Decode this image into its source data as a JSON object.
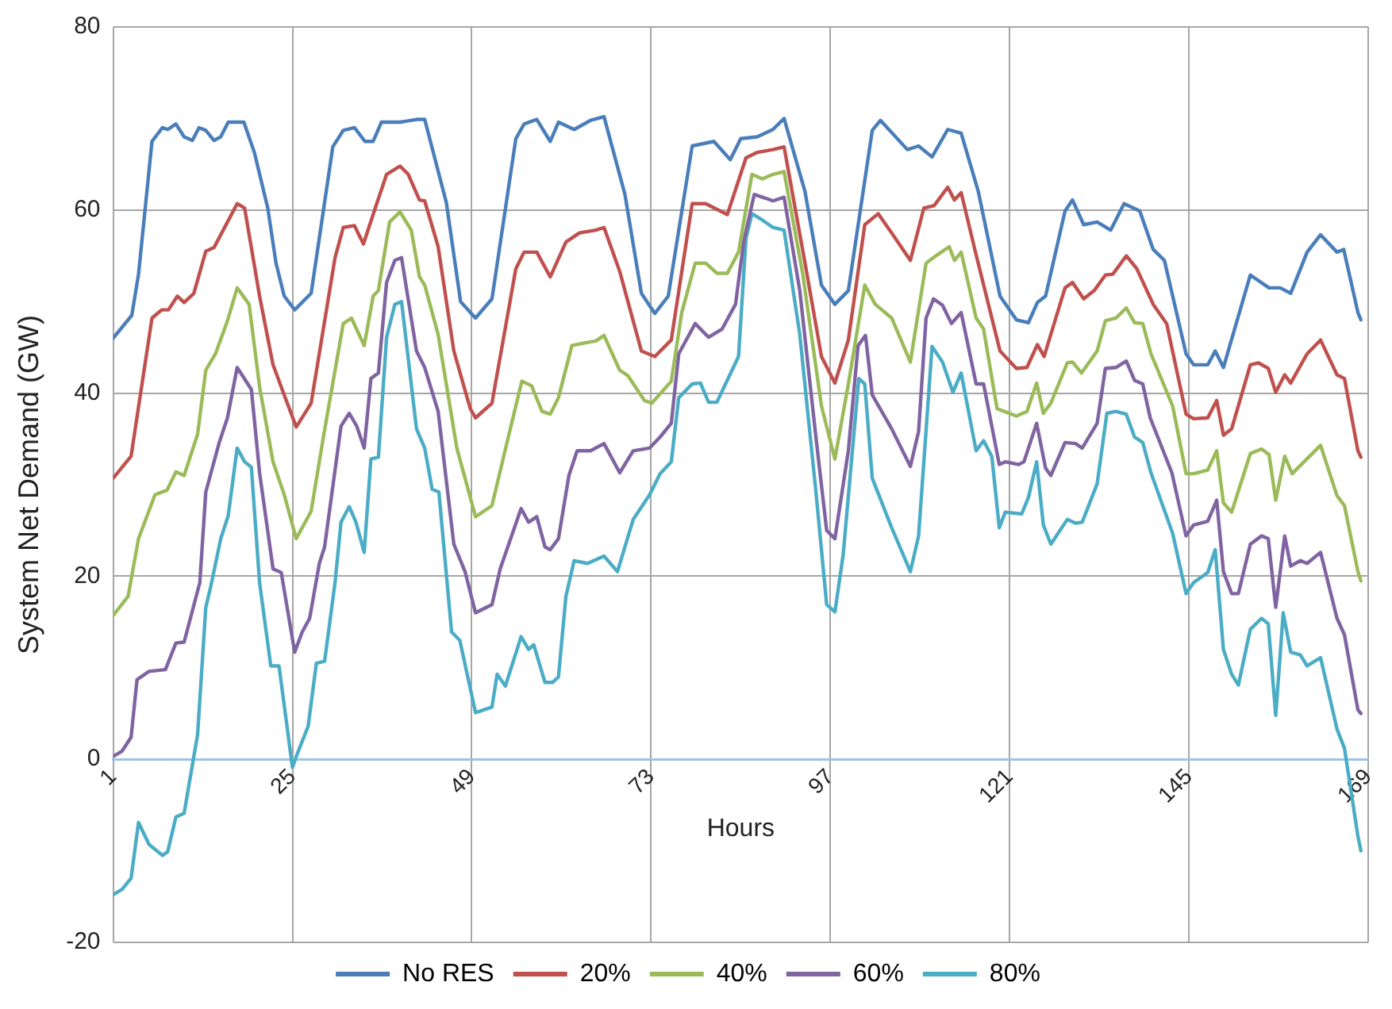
{
  "chart_data": {
    "type": "line",
    "xlabel": "Hours",
    "ylabel": "System Net Demand (GW)",
    "xlim": [
      1,
      169
    ],
    "xticks": [
      1,
      25,
      49,
      73,
      97,
      121,
      145,
      169
    ],
    "ylim": [
      -20,
      80
    ],
    "yticks": [
      -20,
      0,
      20,
      40,
      60,
      80
    ],
    "grid": true,
    "legend": "bottom",
    "marker": "none",
    "line_style": "solid",
    "series": [
      {
        "name": "No RES",
        "color": "#4a7ebb",
        "x": [
          1,
          3.5,
          4.4,
          6.2,
          7.6,
          8.3,
          9.4,
          10.5,
          11.6,
          12.5,
          13.4,
          14.5,
          15.4,
          16.4,
          18.5,
          19.9,
          21.7,
          22.8,
          23.9,
          25.3,
          27.5,
          30.4,
          31.8,
          33.3,
          34.7,
          35.8,
          36.9,
          39.4,
          41.6,
          42.7,
          45.6,
          47.5,
          49.5,
          51.7,
          54.9,
          56,
          57.7,
          59.5,
          60.6,
          62.7,
          64.9,
          66.7,
          69.5,
          71.7,
          73.5,
          75.3,
          78.5,
          81.4,
          83.6,
          85,
          87.2,
          89.3,
          90.8,
          93.6,
          95.8,
          97.6,
          99.4,
          102.6,
          103.7,
          107.3,
          108.8,
          110.6,
          112.7,
          114.5,
          116.8,
          119.7,
          121.9,
          123.5,
          124.7,
          125.8,
          128.4,
          129.4,
          130.9,
          132.7,
          134.5,
          136.3,
          138.4,
          140.2,
          141.7,
          144.6,
          145.6,
          147.5,
          148.5,
          149.6,
          153.2,
          155.7,
          157.2,
          158.6,
          160.8,
          162.6,
          164.8,
          165.7,
          167.6,
          168
        ],
        "values": [
          46,
          48.5,
          53,
          67.5,
          69,
          68.8,
          69.4,
          68,
          67.6,
          69,
          68.7,
          67.6,
          68,
          69.6,
          69.6,
          66.3,
          60.2,
          54.2,
          50.6,
          49.1,
          50.9,
          66.9,
          68.7,
          69,
          67.5,
          67.5,
          69.6,
          69.6,
          69.9,
          69.9,
          60.8,
          50,
          48.2,
          50.3,
          67.8,
          69.4,
          69.9,
          67.5,
          69.6,
          68.8,
          69.8,
          70.2,
          61.7,
          50.9,
          48.7,
          50.6,
          67,
          67.5,
          65.5,
          67.8,
          68,
          68.8,
          70,
          62,
          51.8,
          49.7,
          51.2,
          68.7,
          69.8,
          66.6,
          67,
          65.8,
          68.8,
          68.4,
          62,
          50.6,
          48,
          47.7,
          49.9,
          50.6,
          59.9,
          61.1,
          58.4,
          58.7,
          57.8,
          60.7,
          59.9,
          55.7,
          54.5,
          44.3,
          43.1,
          43.1,
          44.6,
          42.8,
          52.9,
          51.5,
          51.5,
          50.9,
          55.4,
          57.3,
          55.4,
          55.7,
          48.8,
          48
        ]
      },
      {
        "name": "20%",
        "color": "#c0504d",
        "x": [
          1,
          3.4,
          6.2,
          7.5,
          8.4,
          9.6,
          10.5,
          11.8,
          13.4,
          14.5,
          17.6,
          18.6,
          20.6,
          22.4,
          23.9,
          25.5,
          27.5,
          30.7,
          31.8,
          33.3,
          34.5,
          36.2,
          37.6,
          39.4,
          40.5,
          42,
          42.7,
          44.5,
          46.6,
          48.8,
          49.5,
          51.7,
          54.9,
          56,
          57.7,
          59.5,
          61.6,
          63.4,
          65.6,
          66.7,
          68.8,
          71.7,
          73.5,
          75.7,
          78.5,
          80.3,
          83.2,
          85.7,
          87.2,
          89.3,
          90.8,
          93.6,
          95.8,
          97.6,
          99.4,
          101.6,
          103.4,
          105.2,
          107.7,
          109.5,
          110.9,
          112.7,
          113.6,
          114.5,
          116.5,
          119.7,
          121.9,
          123.3,
          124.7,
          125.6,
          128.4,
          129.4,
          130.9,
          132.3,
          133.8,
          134.8,
          136.6,
          138,
          140.2,
          142,
          144.6,
          145.6,
          147.5,
          148.7,
          149.6,
          150.7,
          153.2,
          154.3,
          155.6,
          156.6,
          157.8,
          158.6,
          160.8,
          162.6,
          164.8,
          165.8,
          167.6,
          168
        ],
        "values": [
          30.7,
          33.1,
          48.2,
          49.1,
          49.1,
          50.6,
          49.9,
          50.9,
          55.5,
          55.9,
          60.7,
          60.2,
          50.6,
          43.1,
          39.8,
          36.3,
          38.9,
          54.8,
          58.1,
          58.3,
          56.3,
          60.5,
          63.9,
          64.8,
          63.9,
          61.1,
          61,
          56,
          44.6,
          38.3,
          37.3,
          38.9,
          53.6,
          55.4,
          55.4,
          52.7,
          56.5,
          57.5,
          57.8,
          58.1,
          53.3,
          44.6,
          44,
          45.8,
          60.7,
          60.7,
          59.5,
          65.7,
          66.3,
          66.6,
          66.9,
          54.2,
          44,
          41.1,
          45.8,
          58.4,
          59.6,
          57.5,
          54.5,
          60.2,
          60.5,
          62.5,
          61.1,
          61.9,
          55.1,
          44.6,
          42.7,
          42.8,
          45.3,
          44,
          51.5,
          52.1,
          50.3,
          51.2,
          52.9,
          53,
          55,
          53.6,
          49.7,
          47.6,
          37.7,
          37.2,
          37.3,
          39.2,
          35.4,
          36.1,
          43.1,
          43.3,
          42.7,
          40.1,
          42,
          41.1,
          44.3,
          45.8,
          42,
          41.6,
          33.7,
          33
        ]
      },
      {
        "name": "40%",
        "color": "#9bbb59",
        "x": [
          1,
          3,
          4.4,
          6.6,
          8.2,
          9.4,
          10.5,
          12.3,
          13.4,
          14.7,
          16.3,
          17.6,
          19.2,
          20.6,
          22.4,
          23.9,
          25.5,
          27.5,
          29.2,
          31.8,
          32.9,
          34.6,
          35.8,
          36.5,
          38,
          39.4,
          40.9,
          42,
          42.7,
          44.5,
          47,
          49.5,
          51.7,
          53.8,
          55.7,
          57,
          58.4,
          59.5,
          60.6,
          62.4,
          64.2,
          65.6,
          66.7,
          68.8,
          69.9,
          72.1,
          73.1,
          75.7,
          77.1,
          78.9,
          80.3,
          81.8,
          83.2,
          84.7,
          86.5,
          87.9,
          89.3,
          90.8,
          93.3,
          95.8,
          97.6,
          99.4,
          101.6,
          103,
          105.2,
          107.7,
          109.8,
          111.3,
          112.9,
          113.6,
          114.5,
          116.5,
          117.5,
          119.3,
          121.9,
          123.3,
          124.6,
          125.5,
          126.5,
          128.7,
          129.4,
          130.6,
          132.7,
          133.8,
          135.2,
          136.6,
          137.7,
          138.8,
          139.9,
          142.8,
          144.6,
          145.6,
          147.5,
          148.7,
          149.6,
          150.7,
          153.2,
          154.7,
          155.7,
          156.6,
          157.8,
          158.8,
          162.6,
          164.8,
          165.8,
          167.6,
          168
        ],
        "values": [
          15.7,
          17.8,
          24.1,
          28.9,
          29.4,
          31.4,
          31,
          35.5,
          42.5,
          44.3,
          47.9,
          51.5,
          49.7,
          40.7,
          32.5,
          28.9,
          24.1,
          27.1,
          35.5,
          47.6,
          48.2,
          45.2,
          50.6,
          51.2,
          58.7,
          59.8,
          57.8,
          52.7,
          51.8,
          46.4,
          34,
          26.5,
          27.7,
          34.9,
          41.3,
          40.8,
          38,
          37.7,
          39.5,
          45.2,
          45.5,
          45.7,
          46.3,
          42.5,
          41.9,
          39.2,
          38.9,
          41.3,
          48.8,
          54.2,
          54.2,
          53.1,
          53.1,
          55.4,
          63.9,
          63.4,
          63.9,
          64.2,
          53,
          38.6,
          32.8,
          41,
          51.8,
          49.7,
          48.2,
          43.4,
          54.2,
          55.1,
          56,
          54.5,
          55.4,
          48.2,
          47,
          38.3,
          37.5,
          38,
          41.1,
          37.8,
          38.9,
          43.3,
          43.4,
          42.2,
          44.6,
          47.9,
          48.2,
          49.3,
          47.7,
          47.6,
          44.3,
          38.6,
          31.2,
          31.2,
          31.6,
          33.7,
          28,
          27,
          33.4,
          33.9,
          33.3,
          28.3,
          33.1,
          31.2,
          34.3,
          28.8,
          27.7,
          20.5,
          19.5
        ]
      },
      {
        "name": "60%",
        "color": "#8064a2",
        "x": [
          1,
          2.2,
          3.4,
          4.2,
          5.8,
          8,
          9.4,
          10.5,
          12.6,
          13.4,
          15.2,
          16.3,
          17.6,
          19.5,
          20.6,
          22.4,
          23.5,
          25.3,
          26.3,
          27.3,
          28.6,
          29.3,
          31.5,
          32.6,
          33.6,
          34.6,
          35.5,
          36.5,
          37.6,
          38.7,
          39.6,
          41.6,
          42.7,
          44.5,
          46.6,
          48.1,
          49.5,
          51.7,
          52.8,
          55.6,
          56.6,
          57.7,
          58.8,
          59.5,
          60.6,
          62,
          63.1,
          64.9,
          66.7,
          68.8,
          70.6,
          72.8,
          74.2,
          75.7,
          76.7,
          78.9,
          80.7,
          82.5,
          84.3,
          85.4,
          86.8,
          88.3,
          89.3,
          90.8,
          92.9,
          95.1,
          96.5,
          97.6,
          99.4,
          100.7,
          101.7,
          102.6,
          105.2,
          107.7,
          108.8,
          109.8,
          110.8,
          112,
          113.2,
          114.5,
          116.5,
          117.5,
          119.6,
          120.4,
          122.2,
          122.9,
          124.6,
          125.8,
          126.5,
          128.4,
          129.8,
          130.7,
          132.7,
          133.8,
          135.2,
          136.6,
          137.7,
          138.8,
          139.8,
          142.7,
          144.6,
          145.6,
          147.5,
          148.7,
          149.6,
          150.7,
          151.6,
          153.2,
          154.7,
          155.6,
          156.6,
          157.8,
          158.6,
          159.9,
          160.8,
          162.6,
          164.8,
          165.8,
          167.6,
          168
        ],
        "values": [
          0.3,
          0.9,
          2.4,
          8.7,
          9.6,
          9.8,
          12.7,
          12.8,
          19.3,
          29.2,
          34.6,
          37.3,
          42.8,
          40.4,
          31.3,
          20.8,
          20.4,
          11.7,
          13.9,
          15.4,
          21.4,
          23.2,
          36.4,
          37.8,
          36.4,
          34,
          41.6,
          42.2,
          52.1,
          54.5,
          54.8,
          44.6,
          42.8,
          38,
          23.5,
          20.5,
          16,
          16.9,
          20.8,
          27.4,
          25.9,
          26.5,
          23.2,
          22.9,
          24.1,
          31,
          33.7,
          33.7,
          34.5,
          31.3,
          33.7,
          34,
          35.2,
          36.7,
          44.3,
          47.6,
          46.1,
          47,
          49.7,
          56.6,
          61.7,
          61.3,
          61,
          61.4,
          51.2,
          34.9,
          25,
          24.1,
          33.7,
          45.2,
          46.3,
          39.8,
          36.1,
          32,
          35.8,
          48.2,
          50.3,
          49.6,
          47.6,
          48.8,
          41,
          41,
          32.2,
          32.5,
          32.2,
          32.5,
          36.7,
          31.8,
          31,
          34.6,
          34.5,
          34,
          36.7,
          42.7,
          42.8,
          43.5,
          41.4,
          41,
          37.3,
          31.3,
          24.4,
          25.6,
          26,
          28.3,
          20.5,
          18.1,
          18.1,
          23.5,
          24.4,
          24.1,
          16.6,
          24.4,
          21.1,
          21.7,
          21.4,
          22.6,
          15.4,
          13.6,
          5.4,
          5
        ]
      },
      {
        "name": "80%",
        "color": "#4bacc6",
        "x": [
          1,
          2.2,
          3.4,
          4.4,
          5.8,
          7.6,
          8.3,
          9.4,
          10.5,
          12.3,
          13.4,
          14.1,
          15.4,
          16.4,
          17.6,
          18.6,
          19.5,
          20.6,
          22.1,
          23.2,
          25,
          25.5,
          27.1,
          28.2,
          29.3,
          30.7,
          31.5,
          32.6,
          33.5,
          34.6,
          35.5,
          36.5,
          37.6,
          38.7,
          39.6,
          41.6,
          42.7,
          43.7,
          44.6,
          46.3,
          47.4,
          49.5,
          51.7,
          52.4,
          53.5,
          55.6,
          56.6,
          57.3,
          58.8,
          59.8,
          60.6,
          61.6,
          62.7,
          64.5,
          66.7,
          68.5,
          70.6,
          72.8,
          74.2,
          75.7,
          76.7,
          78.5,
          79.6,
          80.7,
          81.8,
          84.7,
          85.7,
          86.5,
          87.9,
          89.3,
          90.8,
          92.9,
          95.1,
          96.5,
          97.6,
          98.7,
          100.8,
          101.6,
          102.6,
          105.2,
          107.7,
          108.8,
          110.6,
          112,
          113.4,
          114.5,
          116.5,
          117.5,
          118.6,
          119.6,
          120.4,
          122.6,
          123.5,
          124.6,
          125.5,
          126.5,
          128.7,
          129.8,
          130.7,
          132.7,
          134,
          135.2,
          136.6,
          137.7,
          138.8,
          139.9,
          142.8,
          144.6,
          145.6,
          147.5,
          148.5,
          149.6,
          150.7,
          151.6,
          153.2,
          154.7,
          155.6,
          156.6,
          157.6,
          158.6,
          159.9,
          160.8,
          162.6,
          164.8,
          165.8,
          167.6,
          168
        ],
        "values": [
          -14.8,
          -14.2,
          -13,
          -6.9,
          -9.3,
          -10.5,
          -10.1,
          -6.3,
          -5.9,
          2.7,
          16.6,
          19,
          24.1,
          26.6,
          34,
          32.5,
          31.9,
          19.3,
          10.2,
          10.2,
          -0.9,
          0.3,
          3.6,
          10.5,
          10.7,
          19.3,
          25.9,
          27.6,
          25.9,
          22.6,
          32.8,
          33,
          46.1,
          49.7,
          50,
          36.1,
          34,
          29.5,
          29.2,
          13.9,
          13,
          5.1,
          5.7,
          9.3,
          8,
          13.4,
          12,
          12.5,
          8.4,
          8.4,
          9,
          17.8,
          21.7,
          21.4,
          22.2,
          20.5,
          26.2,
          28.9,
          31.2,
          32.5,
          39.5,
          41,
          41.1,
          39,
          39,
          44,
          56.9,
          59.6,
          58.9,
          58.1,
          57.8,
          46.4,
          28.9,
          16.9,
          16.1,
          22.3,
          41.6,
          41,
          30.7,
          25.3,
          20.5,
          24.4,
          45.1,
          43.4,
          40.1,
          42.2,
          33.7,
          34.8,
          33.1,
          25.3,
          27,
          26.8,
          28.6,
          32.5,
          25.6,
          23.5,
          26.2,
          25.8,
          25.9,
          30.1,
          37.8,
          38,
          37.7,
          35.2,
          34.6,
          31.3,
          24.7,
          18.1,
          19.3,
          20.4,
          22.9,
          12,
          9.3,
          8.1,
          14.2,
          15.4,
          14.8,
          4.8,
          16,
          11.7,
          11.4,
          10.2,
          11.1,
          3.3,
          1.2,
          -8.4,
          -10
        ]
      }
    ]
  }
}
